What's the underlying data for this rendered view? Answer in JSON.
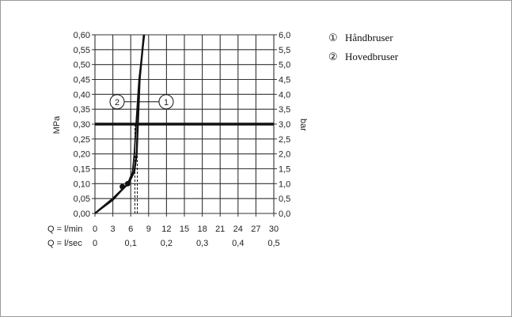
{
  "chart_data": {
    "type": "line",
    "title": "",
    "ylabel_left": "MPa",
    "ylabel_right": "bar",
    "x_row1_label": "Q = l/min",
    "x_row2_label": "Q = l/sec",
    "x_ticks_lmin": [
      "0",
      "3",
      "6",
      "9",
      "12",
      "15",
      "18",
      "21",
      "24",
      "27",
      "30"
    ],
    "x_ticks_lsec": [
      "0",
      "0,1",
      "0,2",
      "0,3",
      "0,4",
      "0,5"
    ],
    "y_ticks_mpa": [
      "0,00",
      "0,05",
      "0,10",
      "0,15",
      "0,20",
      "0,25",
      "0,30",
      "0,35",
      "0,40",
      "0,45",
      "0,50",
      "0,55",
      "0,60"
    ],
    "y_ticks_bar": [
      "0,0",
      "0,5",
      "1,0",
      "1,5",
      "2,0",
      "2,5",
      "3,0",
      "3,5",
      "4,0",
      "4,5",
      "5,0",
      "5,5",
      "6,0"
    ],
    "xlim": [
      0,
      30
    ],
    "ylim": [
      0,
      0.6
    ],
    "grid": true,
    "reference_line": {
      "y": 0.3
    },
    "series": [
      {
        "name": "Håndbruser",
        "marker_label": "①",
        "x": [
          0,
          3,
          5.6,
          6.6,
          7.0,
          7.2,
          7.5,
          8.2
        ],
        "y": [
          0,
          0.05,
          0.1,
          0.14,
          0.2,
          0.3,
          0.45,
          0.6
        ],
        "operating_point": {
          "x": 7.1,
          "y": 0.3
        }
      },
      {
        "name": "Hovedbruser",
        "marker_label": "②",
        "x": [
          0,
          3,
          5.5,
          6.3,
          6.6,
          6.9,
          7.4,
          8.3
        ],
        "y": [
          0,
          0.045,
          0.1,
          0.14,
          0.2,
          0.3,
          0.45,
          0.6
        ],
        "operating_point": {
          "x": 6.7,
          "y": 0.3
        }
      }
    ],
    "points": [
      {
        "x": 5.5,
        "y": 0.1
      },
      {
        "x": 4.6,
        "y": 0.09
      }
    ],
    "legend": {
      "placement": "top-right",
      "entries": [
        {
          "marker": "①",
          "label": "Håndbruser"
        },
        {
          "marker": "②",
          "label": "Hovedbruser"
        }
      ]
    }
  }
}
